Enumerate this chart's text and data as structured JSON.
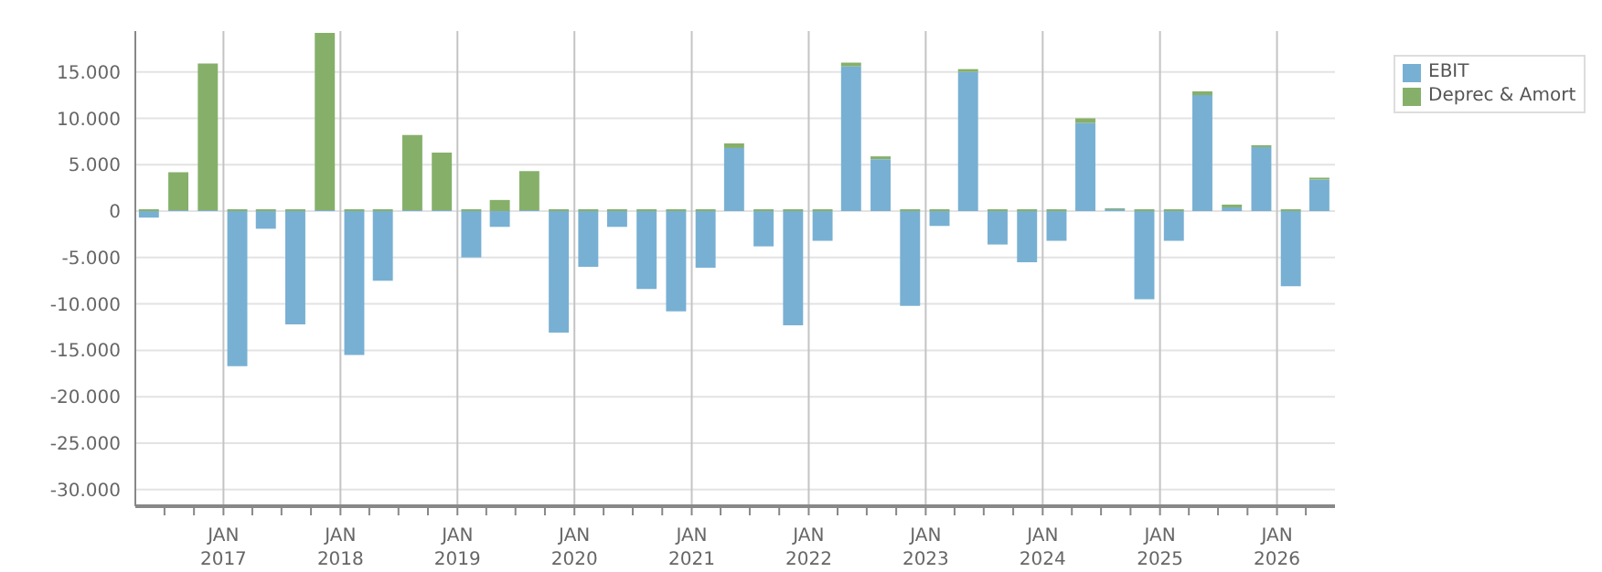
{
  "chart_data": {
    "type": "bar",
    "stacked": true,
    "grid": true,
    "legend": "top right",
    "x": [
      "2016-05-15",
      "2016-08-15",
      "2016-11-15",
      "2017-02-15",
      "2017-05-15",
      "2017-08-15",
      "2017-11-15",
      "2018-02-15",
      "2018-05-15",
      "2018-08-15",
      "2018-11-15",
      "2019-02-15",
      "2019-05-15",
      "2019-08-15",
      "2019-11-15",
      "2020-02-15",
      "2020-05-15",
      "2020-08-15",
      "2020-11-15",
      "2021-02-15",
      "2021-05-15",
      "2021-08-15",
      "2021-11-15",
      "2022-02-15",
      "2022-05-15",
      "2022-08-15",
      "2022-11-15",
      "2023-02-15",
      "2023-05-15",
      "2023-08-15",
      "2023-11-15",
      "2024-02-15",
      "2024-05-15",
      "2024-08-15",
      "2024-11-15",
      "2025-02-15",
      "2025-05-15",
      "2025-08-15",
      "2025-11-15",
      "2026-02-15",
      "2026-05-15"
    ],
    "series": [
      {
        "name": "EBIT",
        "color": "#78b0d3",
        "values": [
          -700,
          100,
          100,
          -16700,
          -1900,
          -12200,
          100,
          -15500,
          -7500,
          100,
          100,
          -5000,
          -1700,
          100,
          -13100,
          -6000,
          -1700,
          -8400,
          -10800,
          -6100,
          6800,
          -3800,
          -12300,
          -3200,
          15600,
          5600,
          -10200,
          -1600,
          15000,
          -3600,
          -5500,
          -3200,
          9500,
          200,
          -9500,
          -3200,
          12500,
          400,
          6900,
          -8100,
          3400
        ]
      },
      {
        "name": "Deprec & Amort",
        "color": "#86b06a",
        "values": [
          200,
          4100,
          15800,
          200,
          200,
          200,
          19100,
          200,
          200,
          8100,
          6200,
          200,
          1200,
          4200,
          200,
          200,
          200,
          200,
          200,
          200,
          500,
          200,
          200,
          200,
          400,
          300,
          200,
          200,
          300,
          200,
          200,
          200,
          500,
          100,
          200,
          200,
          400,
          300,
          200,
          200,
          200
        ]
      }
    ],
    "xlim": [
      "2016-04-01",
      "2026-07-01"
    ],
    "xticks": [
      {
        "value": "2016-07-01",
        "label": null
      },
      {
        "value": "2016-10-01",
        "label": null
      },
      {
        "value": "2017-01-01",
        "label": "JAN 2017"
      },
      {
        "value": "2017-04-01",
        "label": null
      },
      {
        "value": "2017-07-01",
        "label": null
      },
      {
        "value": "2017-10-01",
        "label": null
      },
      {
        "value": "2018-01-01",
        "label": "JAN 2018"
      },
      {
        "value": "2018-04-01",
        "label": null
      },
      {
        "value": "2018-07-01",
        "label": null
      },
      {
        "value": "2018-10-01",
        "label": null
      },
      {
        "value": "2019-01-01",
        "label": "JAN 2019"
      },
      {
        "value": "2019-04-01",
        "label": null
      },
      {
        "value": "2019-07-01",
        "label": null
      },
      {
        "value": "2019-10-01",
        "label": null
      },
      {
        "value": "2020-01-01",
        "label": "JAN 2020"
      },
      {
        "value": "2020-04-01",
        "label": null
      },
      {
        "value": "2020-07-01",
        "label": null
      },
      {
        "value": "2020-10-01",
        "label": null
      },
      {
        "value": "2021-01-01",
        "label": "JAN 2021"
      },
      {
        "value": "2021-04-01",
        "label": null
      },
      {
        "value": "2021-07-01",
        "label": null
      },
      {
        "value": "2021-10-01",
        "label": null
      },
      {
        "value": "2022-01-01",
        "label": "JAN 2022"
      },
      {
        "value": "2022-04-01",
        "label": null
      },
      {
        "value": "2022-07-01",
        "label": null
      },
      {
        "value": "2022-10-01",
        "label": null
      },
      {
        "value": "2023-01-01",
        "label": "JAN 2023"
      },
      {
        "value": "2023-04-01",
        "label": null
      },
      {
        "value": "2023-07-01",
        "label": null
      },
      {
        "value": "2023-10-01",
        "label": null
      },
      {
        "value": "2024-01-01",
        "label": "JAN 2024"
      },
      {
        "value": "2024-04-01",
        "label": null
      },
      {
        "value": "2024-07-01",
        "label": null
      },
      {
        "value": "2024-10-01",
        "label": null
      },
      {
        "value": "2025-01-01",
        "label": "JAN 2025"
      },
      {
        "value": "2025-04-01",
        "label": null
      },
      {
        "value": "2025-07-01",
        "label": null
      },
      {
        "value": "2025-10-01",
        "label": null
      },
      {
        "value": "2026-01-01",
        "label": "JAN 2026"
      },
      {
        "value": "2026-04-01",
        "label": null
      }
    ],
    "ylim": [
      -31800,
      19400
    ],
    "yticks": [
      {
        "value": -30000,
        "label": "-30.000"
      },
      {
        "value": -25000,
        "label": "-25.000"
      },
      {
        "value": -20000,
        "label": "-20.000"
      },
      {
        "value": -15000,
        "label": "-15.000"
      },
      {
        "value": -10000,
        "label": "-10.000"
      },
      {
        "value": -5000,
        "label": "-5.000"
      },
      {
        "value": 0,
        "label": "0"
      },
      {
        "value": 5000,
        "label": "5.000"
      },
      {
        "value": 10000,
        "label": "10.000"
      },
      {
        "value": 15000,
        "label": "15.000"
      }
    ]
  }
}
